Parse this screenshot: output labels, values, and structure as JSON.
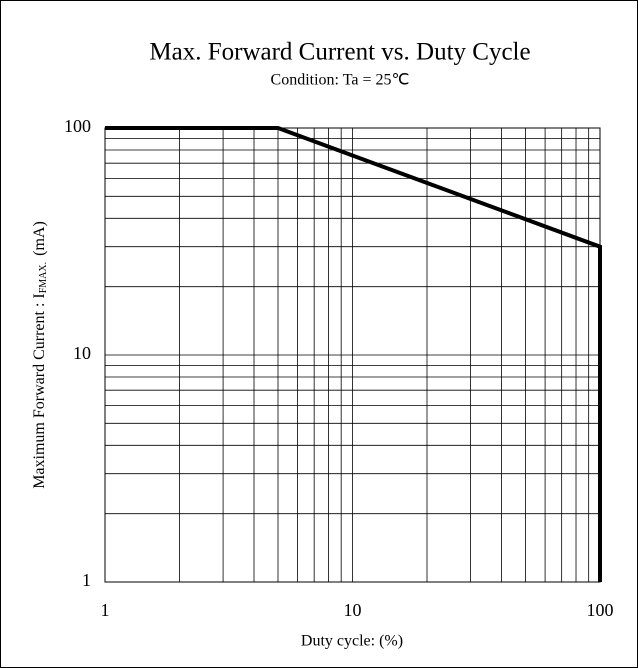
{
  "chart_data": {
    "type": "line",
    "title": "Max. Forward Current vs. Duty Cycle",
    "subtitle": "Condition: Ta = 25℃",
    "xlabel": "Duty cycle: (%)",
    "ylabel": {
      "text": "Maximum Forward Current : I",
      "subscript": "FMAX.",
      "unit": "(mA)"
    },
    "x": [
      1,
      5,
      100,
      100
    ],
    "series": [
      {
        "name": "IFMAX",
        "color": "#000000",
        "values": [
          100,
          100,
          30,
          1
        ]
      }
    ],
    "xlim": [
      1,
      100
    ],
    "ylim": [
      1,
      100
    ],
    "xticks": [
      1,
      10,
      100
    ],
    "yticks": [
      1,
      10,
      100
    ],
    "x_minor_grid": [
      2,
      3,
      4,
      5,
      6,
      7,
      8,
      9,
      20,
      30,
      40,
      50,
      60,
      70,
      80,
      90
    ],
    "y_minor_grid": [
      2,
      3,
      4,
      5,
      6,
      7,
      8,
      9,
      20,
      30,
      40,
      50,
      60,
      70,
      80,
      90
    ],
    "xscale": "log",
    "yscale": "log",
    "grid": true
  }
}
